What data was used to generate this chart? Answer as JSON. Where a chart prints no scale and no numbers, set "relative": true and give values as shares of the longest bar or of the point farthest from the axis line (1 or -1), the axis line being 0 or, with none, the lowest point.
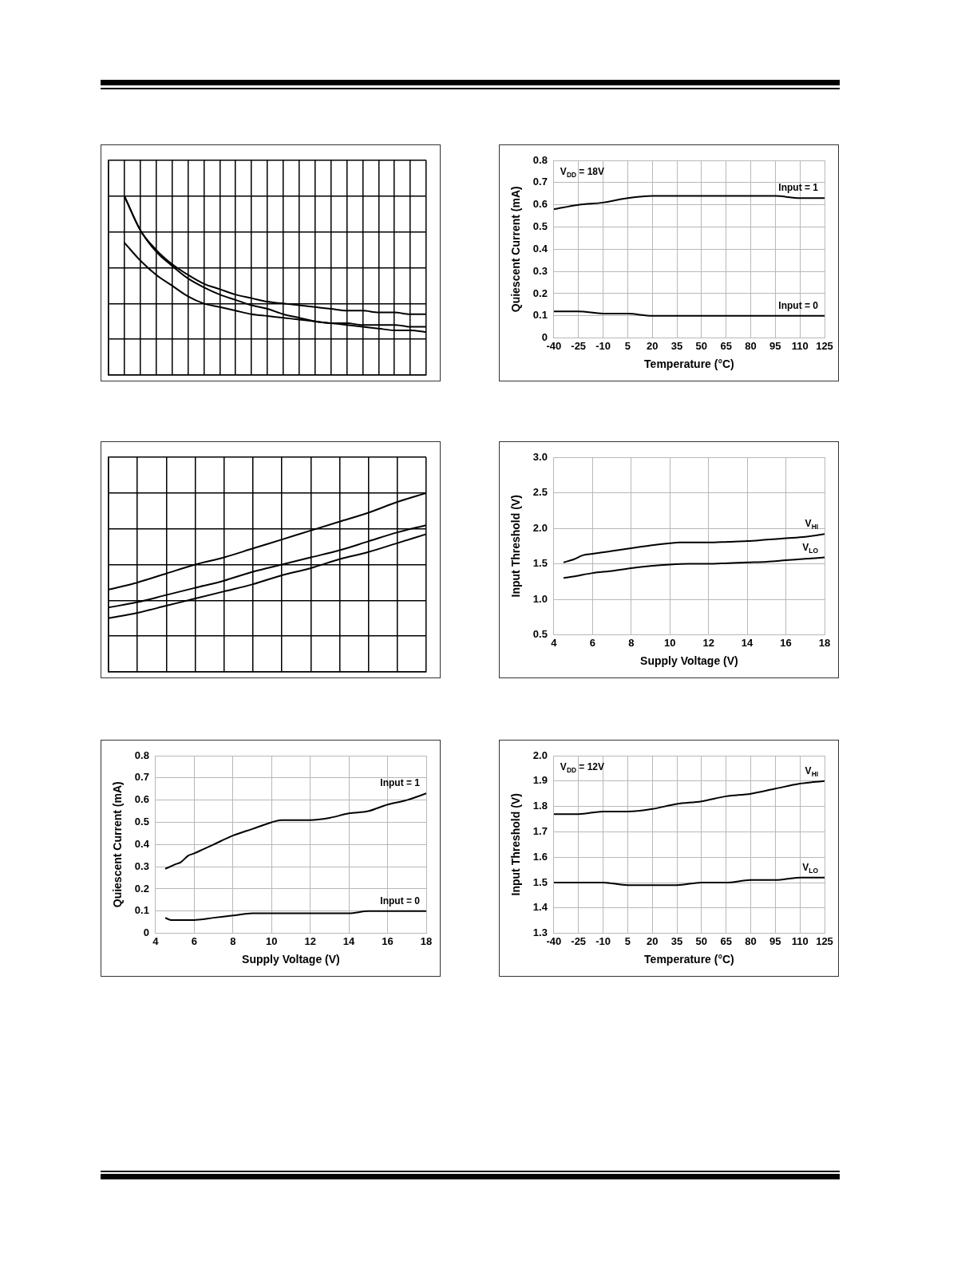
{
  "chart_data": [
    {
      "type": "line",
      "relative": true,
      "tick_labels": false,
      "grid": true,
      "categories": [
        null,
        null,
        null,
        null,
        null,
        null,
        null,
        null,
        null,
        null,
        null,
        null,
        null,
        null,
        null,
        null,
        null,
        null,
        null,
        null,
        null
      ],
      "series": [
        {
          "color": "#000000",
          "values": [
            null,
            1.0,
            0.81,
            0.7,
            0.62,
            0.56,
            0.51,
            0.48,
            0.45,
            0.43,
            0.41,
            0.4,
            0.39,
            0.38,
            0.37,
            0.36,
            0.36,
            0.35,
            0.35,
            0.34,
            0.34
          ]
        },
        {
          "color": "#000000",
          "values": [
            null,
            1.0,
            0.81,
            0.69,
            0.61,
            0.54,
            0.49,
            0.45,
            0.42,
            0.39,
            0.37,
            0.34,
            0.32,
            0.3,
            0.29,
            0.28,
            0.27,
            0.26,
            0.25,
            0.25,
            0.24
          ]
        },
        {
          "color": "#000000",
          "values": [
            null,
            0.74,
            0.64,
            0.56,
            0.5,
            0.44,
            0.4,
            0.38,
            0.36,
            0.34,
            0.33,
            0.32,
            0.31,
            0.3,
            0.29,
            0.29,
            0.28,
            0.28,
            0.28,
            0.27,
            0.27
          ]
        }
      ]
    },
    {
      "type": "line",
      "xlabel": "Temperature (°C)",
      "ylabel": "Quiescent Current (mA)",
      "annotations": [
        "V$_{DD}$ = 18V"
      ],
      "grid": true,
      "x": [
        -40,
        -25,
        -10,
        5,
        20,
        35,
        50,
        65,
        80,
        95,
        110,
        125
      ],
      "xlim": [
        -40,
        125
      ],
      "xticks": [
        -40,
        -25,
        -10,
        5,
        20,
        35,
        50,
        65,
        80,
        95,
        110,
        125
      ],
      "ylim": [
        0,
        0.8
      ],
      "yticks": [
        0,
        0.1,
        0.2,
        0.3,
        0.4,
        0.5,
        0.6,
        0.7,
        0.8
      ],
      "series": [
        {
          "name": "Input = 1",
          "color": "#000000",
          "values": [
            0.58,
            0.6,
            0.61,
            0.63,
            0.64,
            0.64,
            0.64,
            0.64,
            0.64,
            0.64,
            0.63,
            0.63
          ]
        },
        {
          "name": "Input = 0",
          "color": "#000000",
          "values": [
            0.12,
            0.12,
            0.11,
            0.11,
            0.1,
            0.1,
            0.1,
            0.1,
            0.1,
            0.1,
            0.1,
            0.1
          ]
        }
      ]
    },
    {
      "type": "line",
      "relative": true,
      "tick_labels": false,
      "grid": true,
      "categories": [
        null,
        null,
        null,
        null,
        null,
        null,
        null,
        null,
        null,
        null,
        null,
        null
      ],
      "series": [
        {
          "color": "#000000",
          "values": [
            0.46,
            0.5,
            0.55,
            0.6,
            0.64,
            0.69,
            0.74,
            0.79,
            0.84,
            0.89,
            0.95,
            1.0
          ]
        },
        {
          "color": "#000000",
          "values": [
            0.36,
            0.39,
            0.43,
            0.47,
            0.51,
            0.56,
            0.6,
            0.64,
            0.68,
            0.73,
            0.78,
            0.82
          ]
        },
        {
          "color": "#000000",
          "values": [
            0.3,
            0.33,
            0.37,
            0.41,
            0.45,
            0.49,
            0.54,
            0.58,
            0.63,
            0.67,
            0.72,
            0.77
          ]
        }
      ]
    },
    {
      "type": "line",
      "xlabel": "Supply Voltage (V)",
      "ylabel": "Input Threshold (V)",
      "grid": true,
      "xlim": [
        4,
        18
      ],
      "xticks": [
        4,
        6,
        8,
        10,
        12,
        14,
        16,
        18
      ],
      "ylim": [
        0.5,
        3.0
      ],
      "yticks": [
        {
          "value": 0.5,
          "label": "0.5"
        },
        {
          "value": 1,
          "label": "1.0"
        },
        {
          "value": 1.5,
          "label": "1.5"
        },
        {
          "value": 2,
          "label": "2.0"
        },
        {
          "value": 2.5,
          "label": "2.5"
        },
        {
          "value": 3,
          "label": "3.0"
        }
      ],
      "series": [
        {
          "name": "V$_{HI}$",
          "color": "#000000",
          "x": [
            4.5,
            5,
            5.5,
            6,
            7,
            8,
            9,
            10,
            10.5,
            12,
            13,
            14,
            15,
            16,
            17,
            18
          ],
          "values": [
            1.52,
            1.56,
            1.62,
            1.64,
            1.68,
            1.72,
            1.76,
            1.79,
            1.8,
            1.8,
            1.81,
            1.82,
            1.84,
            1.86,
            1.88,
            1.92
          ]
        },
        {
          "name": "V$_{LO}$",
          "color": "#000000",
          "x": [
            4.5,
            5,
            6,
            7,
            8,
            9,
            10,
            11,
            12,
            13,
            14,
            15,
            16,
            17,
            18
          ],
          "values": [
            1.3,
            1.32,
            1.37,
            1.4,
            1.44,
            1.47,
            1.49,
            1.5,
            1.5,
            1.51,
            1.52,
            1.53,
            1.55,
            1.57,
            1.59
          ]
        }
      ]
    },
    {
      "type": "line",
      "xlabel": "Supply Voltage (V)",
      "ylabel": "Quiescent Current (mA)",
      "grid": true,
      "xlim": [
        4,
        18
      ],
      "xticks": [
        4,
        6,
        8,
        10,
        12,
        14,
        16,
        18
      ],
      "ylim": [
        0,
        0.8
      ],
      "yticks": [
        0,
        0.1,
        0.2,
        0.3,
        0.4,
        0.5,
        0.6,
        0.7,
        0.8
      ],
      "series": [
        {
          "name": "Input = 1",
          "color": "#000000",
          "x": [
            4.5,
            5,
            5.3,
            5.7,
            6,
            6.5,
            7,
            8,
            9,
            10,
            10.5,
            11.5,
            12,
            13,
            14,
            15,
            16,
            17,
            18
          ],
          "values": [
            0.29,
            0.31,
            0.32,
            0.35,
            0.36,
            0.38,
            0.4,
            0.44,
            0.47,
            0.5,
            0.51,
            0.51,
            0.51,
            0.52,
            0.54,
            0.55,
            0.58,
            0.6,
            0.63
          ]
        },
        {
          "name": "Input = 0",
          "color": "#000000",
          "x": [
            4.5,
            4.8,
            5,
            6,
            7,
            8,
            9,
            10,
            11,
            12,
            13,
            14,
            15,
            16,
            17,
            18
          ],
          "values": [
            0.07,
            0.06,
            0.06,
            0.06,
            0.07,
            0.08,
            0.09,
            0.09,
            0.09,
            0.09,
            0.09,
            0.09,
            0.1,
            0.1,
            0.1,
            0.1
          ]
        }
      ]
    },
    {
      "type": "line",
      "xlabel": "Temperature (°C)",
      "ylabel": "Input Threshold (V)",
      "annotations": [
        "V$_{DD}$ = 12V"
      ],
      "grid": true,
      "x": [
        -40,
        -25,
        -10,
        5,
        20,
        35,
        50,
        65,
        80,
        95,
        110,
        125
      ],
      "xlim": [
        -40,
        125
      ],
      "xticks": [
        -40,
        -25,
        -10,
        5,
        20,
        35,
        50,
        65,
        80,
        95,
        110,
        125
      ],
      "ylim": [
        1.3,
        2.0
      ],
      "yticks": [
        1.3,
        1.4,
        1.5,
        1.6,
        1.7,
        1.8,
        1.9,
        {
          "value": 2,
          "label": "2.0"
        }
      ],
      "series": [
        {
          "name": "V$_{HI}$",
          "color": "#000000",
          "values": [
            1.77,
            1.77,
            1.78,
            1.78,
            1.79,
            1.81,
            1.82,
            1.84,
            1.85,
            1.87,
            1.89,
            1.9
          ]
        },
        {
          "name": "V$_{LO}$",
          "color": "#000000",
          "values": [
            1.5,
            1.5,
            1.5,
            1.49,
            1.49,
            1.49,
            1.5,
            1.5,
            1.51,
            1.51,
            1.52,
            1.52
          ]
        }
      ]
    }
  ]
}
